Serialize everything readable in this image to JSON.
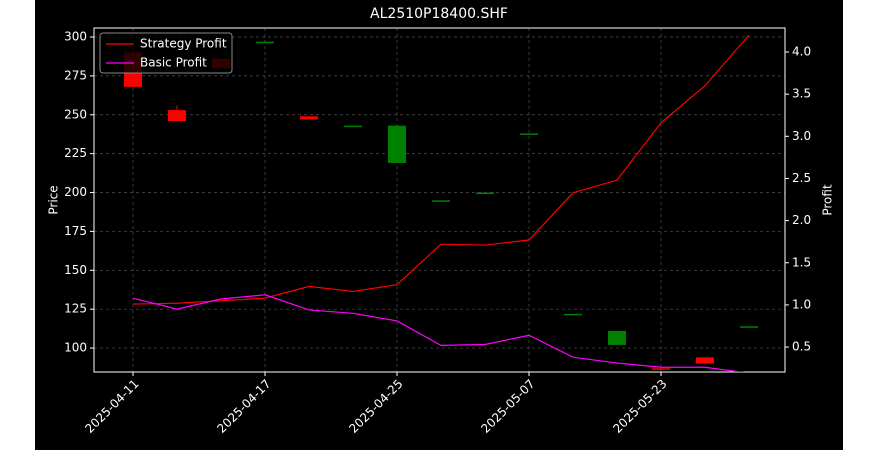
{
  "chart_data": {
    "type": "candlestick",
    "title": "AL2510P18400.SHF",
    "categories": [
      "2025-04-11",
      null,
      null,
      "2025-04-17",
      null,
      null,
      "2025-04-25",
      null,
      null,
      "2025-05-07",
      null,
      null,
      "2025-05-23",
      null,
      null
    ],
    "open": [
      290,
      253,
      286,
      297,
      249,
      243,
      219,
      195,
      200,
      238,
      122,
      102,
      87,
      94,
      114
    ],
    "high": [
      293,
      256,
      286,
      297,
      249,
      243,
      243,
      195,
      200,
      238,
      122,
      111,
      87,
      94,
      114
    ],
    "low": [
      268,
      246,
      280,
      297,
      247,
      243,
      219,
      195,
      200,
      238,
      122,
      102,
      86,
      90,
      114
    ],
    "close": [
      268,
      246,
      280,
      297,
      247,
      243,
      243,
      195,
      200,
      238,
      122,
      111,
      86,
      90,
      114
    ],
    "up_color": "#008000",
    "down_color": "#ff0000",
    "series": [
      {
        "name": "Strategy Profit",
        "color": "#ff0000",
        "axis": "y2",
        "values": [
          1.01,
          1.02,
          1.05,
          1.08,
          1.22,
          1.16,
          1.24,
          1.72,
          1.71,
          1.77,
          2.33,
          2.48,
          3.16,
          3.6,
          4.2
        ]
      },
      {
        "name": "Basic Profit",
        "color": "#ff00ff",
        "axis": "y2",
        "values": [
          1.08,
          0.95,
          1.07,
          1.12,
          0.94,
          0.9,
          0.81,
          0.52,
          0.53,
          0.64,
          0.38,
          0.31,
          0.26,
          0.26,
          0.19
        ]
      }
    ],
    "ylabel": "Price",
    "y2label": "Profit",
    "ylim": [
      84.6,
      305.8
    ],
    "yticks": [
      100,
      125,
      150,
      175,
      200,
      225,
      250,
      275,
      300
    ],
    "y2lim": [
      0.204,
      4.285
    ],
    "y2ticks": [
      0.5,
      {
        "value": 1.0,
        "label": "1.0"
      },
      1.5,
      {
        "value": 2.0,
        "label": "2.0"
      },
      2.5,
      {
        "value": 3.0,
        "label": "3.0"
      },
      3.5,
      {
        "value": 4.0,
        "label": "4.0"
      }
    ],
    "grid": true,
    "legend": "upper left"
  }
}
